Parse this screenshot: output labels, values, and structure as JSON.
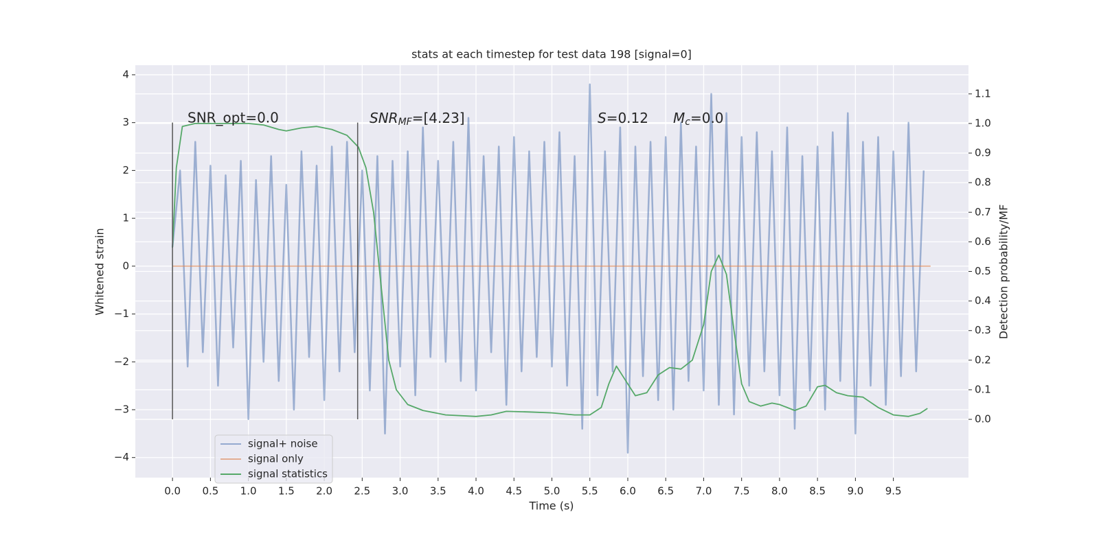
{
  "chart_data": {
    "type": "line",
    "title": "stats at each timestep for test data 198 [signal=0]",
    "xlabel": "Time (s)",
    "ylabel": "Whitened strain",
    "y2label": "Detection probability/MF",
    "xlim": [
      -0.49,
      10.49
    ],
    "ylim": [
      -4.42,
      4.2
    ],
    "y2lim": [
      -0.197,
      1.197
    ],
    "xticks": [
      {
        "value": 0,
        "label": "0.0"
      },
      {
        "value": 0.5,
        "label": "0.5"
      },
      {
        "value": 1,
        "label": "1.0"
      },
      {
        "value": 1.5,
        "label": "1.5"
      },
      {
        "value": 2,
        "label": "2.0"
      },
      {
        "value": 2.5,
        "label": "2.5"
      },
      {
        "value": 3,
        "label": "3.0"
      },
      {
        "value": 3.5,
        "label": "3.5"
      },
      {
        "value": 4,
        "label": "4.0"
      },
      {
        "value": 4.5,
        "label": "4.5"
      },
      {
        "value": 5,
        "label": "5.0"
      },
      {
        "value": 5.5,
        "label": "5.5"
      },
      {
        "value": 6,
        "label": "6.0"
      },
      {
        "value": 6.5,
        "label": "6.5"
      },
      {
        "value": 7,
        "label": "7.0"
      },
      {
        "value": 7.5,
        "label": "7.5"
      },
      {
        "value": 8,
        "label": "8.0"
      },
      {
        "value": 8.5,
        "label": "8.5"
      },
      {
        "value": 9,
        "label": "9.0"
      },
      {
        "value": 9.5,
        "label": "9.5"
      }
    ],
    "yticks": [
      {
        "value": -4,
        "label": "−4"
      },
      {
        "value": -3,
        "label": "−3"
      },
      {
        "value": -2,
        "label": "−2"
      },
      {
        "value": -1,
        "label": "−1"
      },
      0,
      1,
      2,
      3,
      4
    ],
    "y2ticks": [
      {
        "value": 0,
        "label": "0.0"
      },
      {
        "value": 0.1,
        "label": "0.1"
      },
      {
        "value": 0.2,
        "label": "0.2"
      },
      {
        "value": 0.3,
        "label": "0.3"
      },
      {
        "value": 0.4,
        "label": "0.4"
      },
      {
        "value": 0.5,
        "label": "0.5"
      },
      {
        "value": 0.6,
        "label": "0.6"
      },
      {
        "value": 0.7,
        "label": "0.7"
      },
      {
        "value": 0.8,
        "label": "0.8"
      },
      {
        "value": 0.9,
        "label": "0.9"
      },
      {
        "value": 1,
        "label": "1.0"
      },
      {
        "value": 1.1,
        "label": "1.1"
      }
    ],
    "grid": true,
    "legend": "lower left",
    "vlines": [
      {
        "x": 0,
        "ymin": -3.2,
        "ymax": 3.0,
        "color": "#555555"
      },
      {
        "x": 2.44,
        "ymin": -3.2,
        "ymax": 3.0,
        "color": "#555555"
      }
    ],
    "annotations": [
      {
        "text": "SNR_opt=0.0"
      },
      {
        "main": "SNR",
        "sub": "MF",
        "rest": "=[4.23]"
      },
      {
        "main": "S",
        "rest": "=0.12"
      },
      {
        "main": "M",
        "sub": "c",
        "rest": "=0.0"
      }
    ],
    "series": [
      {
        "name": "signal+ noise",
        "color": "#4c72b0",
        "axis": "y",
        "x": [
          0.0,
          0.1,
          0.2,
          0.3,
          0.4,
          0.5,
          0.6,
          0.7,
          0.8,
          0.9,
          1.0,
          1.1,
          1.2,
          1.3,
          1.4,
          1.5,
          1.6,
          1.7,
          1.8,
          1.9,
          2.0,
          2.1,
          2.2,
          2.3,
          2.4,
          2.5,
          2.6,
          2.7,
          2.8,
          2.9,
          3.0,
          3.1,
          3.2,
          3.3,
          3.4,
          3.5,
          3.6,
          3.7,
          3.8,
          3.9,
          4.0,
          4.1,
          4.2,
          4.3,
          4.4,
          4.5,
          4.6,
          4.7,
          4.8,
          4.9,
          5.0,
          5.1,
          5.2,
          5.3,
          5.4,
          5.5,
          5.6,
          5.7,
          5.8,
          5.9,
          6.0,
          6.1,
          6.2,
          6.3,
          6.4,
          6.5,
          6.6,
          6.7,
          6.8,
          6.9,
          7.0,
          7.1,
          7.2,
          7.3,
          7.4,
          7.5,
          7.6,
          7.7,
          7.8,
          7.9,
          8.0,
          8.1,
          8.2,
          8.3,
          8.4,
          8.5,
          8.6,
          8.7,
          8.8,
          8.9,
          9.0,
          9.1,
          9.2,
          9.3,
          9.4,
          9.5,
          9.6,
          9.7,
          9.8,
          9.9
        ],
        "values": [
          0.4,
          2.0,
          -2.1,
          2.6,
          -1.8,
          2.1,
          -2.5,
          1.9,
          -1.7,
          2.2,
          -3.2,
          1.8,
          -2.0,
          2.3,
          -2.4,
          1.7,
          -3.0,
          2.4,
          -1.9,
          2.1,
          -2.8,
          2.5,
          -2.2,
          2.6,
          -1.8,
          2.0,
          -2.6,
          2.3,
          -3.5,
          2.2,
          -2.1,
          2.4,
          -2.7,
          2.9,
          -1.9,
          2.2,
          -2.0,
          2.6,
          -2.4,
          3.1,
          -2.6,
          2.3,
          -1.8,
          2.5,
          -2.9,
          2.7,
          -2.2,
          2.4,
          -1.9,
          2.6,
          -2.1,
          2.8,
          -2.5,
          2.3,
          -3.4,
          3.8,
          -2.7,
          2.4,
          -2.2,
          2.9,
          -3.9,
          2.5,
          -2.3,
          2.6,
          -2.8,
          2.7,
          -3.0,
          3.0,
          -2.4,
          2.5,
          -2.6,
          3.6,
          -2.9,
          3.2,
          -3.1,
          2.7,
          -2.5,
          2.8,
          -2.2,
          2.4,
          -2.7,
          2.9,
          -3.4,
          2.3,
          -2.6,
          2.5,
          -3.0,
          2.8,
          -2.4,
          3.2,
          -3.5,
          2.6,
          -2.5,
          2.7,
          -2.9,
          2.4,
          -2.3,
          3.0,
          -2.2,
          2.0
        ]
      },
      {
        "name": "signal only",
        "color": "#dd8452",
        "axis": "y",
        "x": [
          0,
          9.99
        ],
        "values": [
          0,
          0
        ]
      },
      {
        "name": "signal statistics",
        "color": "#55a868",
        "axis": "y2",
        "x": [
          0.0,
          0.05,
          0.13,
          0.3,
          0.6,
          1.0,
          1.2,
          1.4,
          1.5,
          1.7,
          1.9,
          2.1,
          2.3,
          2.45,
          2.55,
          2.65,
          2.75,
          2.85,
          2.95,
          3.1,
          3.3,
          3.6,
          4.0,
          4.2,
          4.4,
          4.7,
          5.0,
          5.3,
          5.5,
          5.65,
          5.75,
          5.85,
          5.95,
          6.1,
          6.25,
          6.4,
          6.55,
          6.7,
          6.85,
          7.0,
          7.1,
          7.2,
          7.3,
          7.4,
          7.5,
          7.6,
          7.75,
          7.9,
          8.0,
          8.2,
          8.35,
          8.5,
          8.6,
          8.75,
          8.9,
          9.1,
          9.3,
          9.5,
          9.7,
          9.85,
          9.95
        ],
        "values": [
          0.58,
          0.85,
          0.99,
          1.0,
          1.0,
          1.0,
          0.995,
          0.98,
          0.975,
          0.985,
          0.99,
          0.98,
          0.96,
          0.92,
          0.85,
          0.7,
          0.45,
          0.2,
          0.1,
          0.05,
          0.03,
          0.015,
          0.01,
          0.015,
          0.027,
          0.025,
          0.022,
          0.015,
          0.015,
          0.04,
          0.12,
          0.18,
          0.14,
          0.08,
          0.09,
          0.15,
          0.175,
          0.17,
          0.2,
          0.32,
          0.5,
          0.555,
          0.49,
          0.3,
          0.12,
          0.06,
          0.045,
          0.055,
          0.05,
          0.03,
          0.045,
          0.11,
          0.115,
          0.09,
          0.08,
          0.075,
          0.04,
          0.015,
          0.01,
          0.02,
          0.037
        ]
      }
    ]
  }
}
